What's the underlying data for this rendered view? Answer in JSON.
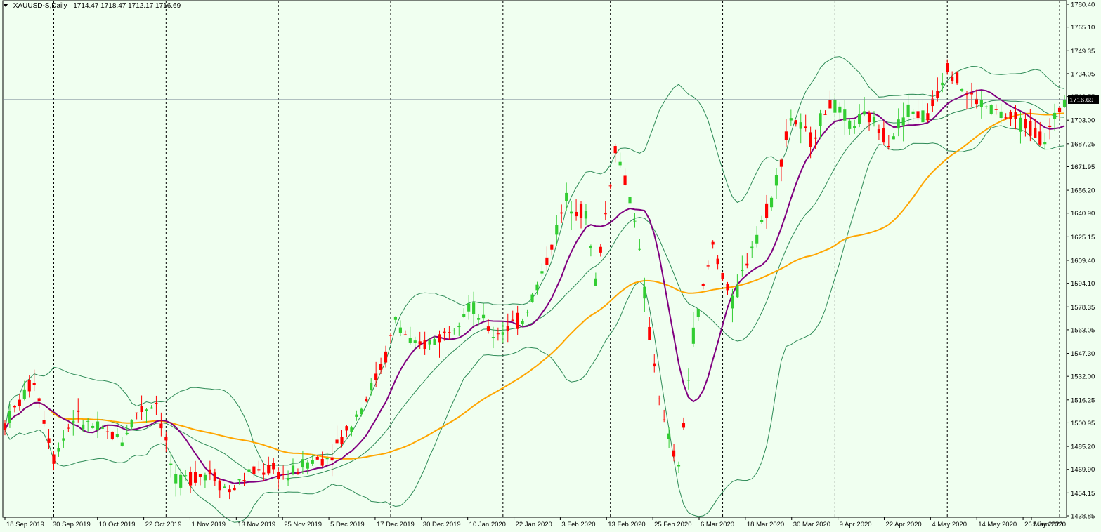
{
  "header": {
    "symbol": "XAUUSD-S,Daily",
    "ohlc": "1714.47 1718.47 1712.17 1716.69"
  },
  "colors": {
    "background": "#f0fff0",
    "bull": "#32cd32",
    "bear": "#ff0000",
    "ma_fast": "#800080",
    "ma_slow": "#ffa500",
    "bands": "#2e8b57",
    "axis_text": "#000000"
  },
  "chart_data": {
    "type": "candlestick",
    "y_axis": {
      "ticks": [
        "1780.40",
        "1765.10",
        "1749.35",
        "1734.05",
        "1718.75",
        "1703.00",
        "1687.25",
        "1671.95",
        "1656.20",
        "1640.90",
        "1625.15",
        "1609.40",
        "1594.10",
        "1578.35",
        "1563.05",
        "1547.30",
        "1532.00",
        "1516.25",
        "1500.95",
        "1485.20",
        "1469.90",
        "1454.15",
        "1438.85"
      ],
      "range": [
        1438.85,
        1780.4
      ]
    },
    "x_axis": {
      "labels": [
        "18 Sep 2019",
        "30 Sep 2019",
        "10 Oct 2019",
        "22 Oct 2019",
        "1 Nov 2019",
        "13 Nov 2019",
        "25 Nov 2019",
        "5 Dec 2019",
        "17 Dec 2019",
        "30 Dec 2019",
        "10 Jan 2020",
        "22 Jan 2020",
        "3 Feb 2020",
        "13 Feb 2020",
        "25 Feb 2020",
        "6 Mar 2020",
        "18 Mar 2020",
        "30 Mar 2020",
        "9 Apr 2020",
        "22 Apr 2020",
        "4 May 2020",
        "14 May 2020",
        "26 May 2020",
        "5 Jun 2020"
      ],
      "label_bar_index": [
        0,
        8,
        16,
        24,
        32,
        40,
        48,
        56,
        64,
        72,
        80,
        88,
        96,
        104,
        112,
        120,
        128,
        136,
        144,
        152,
        160,
        168,
        176,
        183
      ],
      "separators_bar_index": [
        10,
        33,
        56,
        79,
        102,
        124,
        147,
        170,
        193,
        216
      ]
    },
    "current_price": 1716.69,
    "anchors": [
      [
        0,
        1500
      ],
      [
        6,
        1530
      ],
      [
        10,
        1478
      ],
      [
        14,
        1505
      ],
      [
        20,
        1495
      ],
      [
        24,
        1490
      ],
      [
        27,
        1508
      ],
      [
        31,
        1515
      ],
      [
        35,
        1460
      ],
      [
        38,
        1465
      ],
      [
        42,
        1468
      ],
      [
        46,
        1455
      ],
      [
        50,
        1467
      ],
      [
        54,
        1470
      ],
      [
        58,
        1465
      ],
      [
        62,
        1475
      ],
      [
        66,
        1478
      ],
      [
        70,
        1495
      ],
      [
        74,
        1518
      ],
      [
        78,
        1545
      ],
      [
        80,
        1570
      ],
      [
        84,
        1550
      ],
      [
        90,
        1560
      ],
      [
        95,
        1580
      ],
      [
        100,
        1560
      ],
      [
        106,
        1570
      ],
      [
        110,
        1600
      ],
      [
        115,
        1650
      ],
      [
        119,
        1640
      ],
      [
        121,
        1595
      ],
      [
        125,
        1685
      ],
      [
        129,
        1640
      ],
      [
        132,
        1560
      ],
      [
        135,
        1500
      ],
      [
        138,
        1470
      ],
      [
        141,
        1560
      ],
      [
        145,
        1620
      ],
      [
        149,
        1580
      ],
      [
        153,
        1620
      ],
      [
        157,
        1650
      ],
      [
        161,
        1705
      ],
      [
        165,
        1690
      ],
      [
        169,
        1715
      ],
      [
        173,
        1700
      ],
      [
        177,
        1705
      ],
      [
        181,
        1690
      ],
      [
        185,
        1710
      ],
      [
        189,
        1705
      ],
      [
        193,
        1740
      ],
      [
        197,
        1720
      ],
      [
        201,
        1712
      ],
      [
        205,
        1705
      ],
      [
        209,
        1700
      ],
      [
        213,
        1690
      ],
      [
        217,
        1716.69
      ]
    ]
  }
}
